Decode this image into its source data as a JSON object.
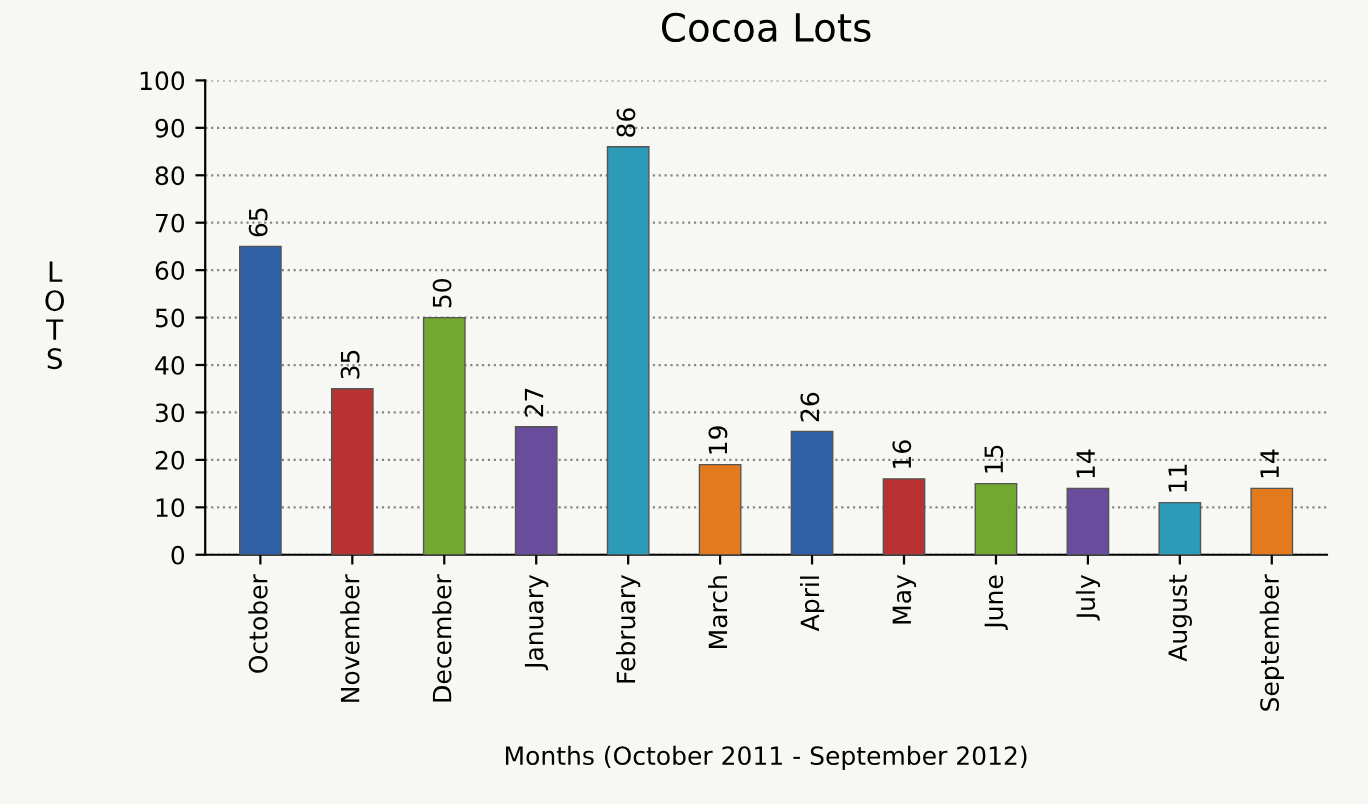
{
  "chart_data": {
    "type": "bar",
    "title": "Cocoa Lots",
    "xlabel": "Months (October 2011 - September 2012)",
    "ylabel": "LOTS",
    "categories": [
      "October",
      "November",
      "December",
      "January",
      "February",
      "March",
      "April",
      "May",
      "June",
      "July",
      "August",
      "September"
    ],
    "values": [
      65,
      35,
      50,
      27,
      86,
      19,
      26,
      16,
      15,
      14,
      11,
      14
    ],
    "colors": [
      "#2f5fa6",
      "#b83232",
      "#72a830",
      "#6a4c9c",
      "#2b9bb8",
      "#e37b1e",
      "#2f5fa6",
      "#b83232",
      "#72a830",
      "#6a4c9c",
      "#2b9bb8",
      "#e37b1e"
    ],
    "ylim": [
      0,
      100
    ],
    "yticks": [
      0,
      10,
      20,
      30,
      40,
      50,
      60,
      70,
      80,
      90,
      100
    ],
    "grid": "y",
    "data_labels": true
  }
}
